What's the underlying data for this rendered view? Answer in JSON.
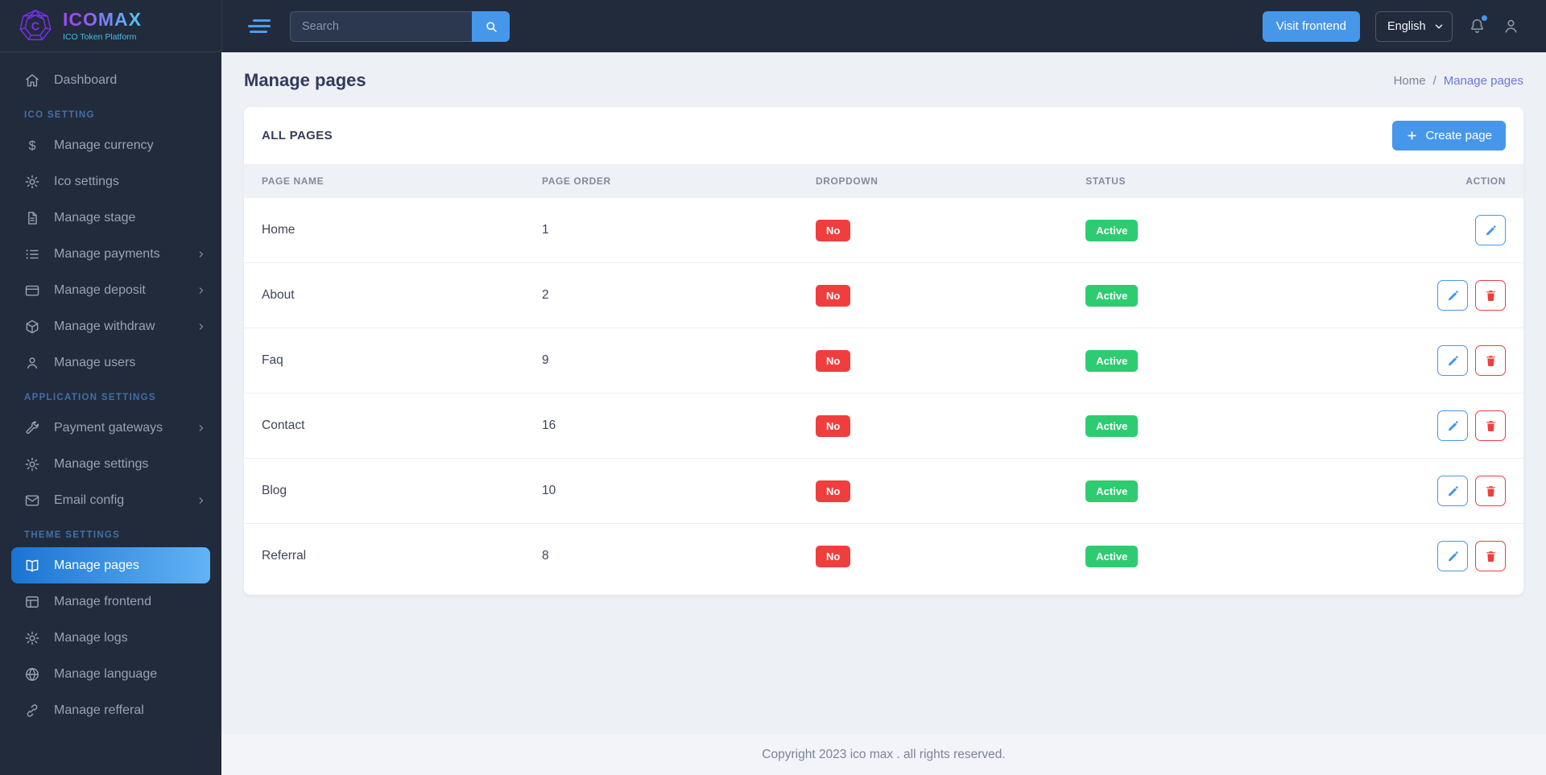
{
  "brand": {
    "name": "ICOMAX",
    "tagline": "ICO Token Platform",
    "logo_icon": "icomax-gem-icon"
  },
  "colors": {
    "sidebar_bg": "#222b3b",
    "topbar_bg": "#222b3b",
    "accent_blue": "#4697ea",
    "active_gradient_start": "#1b74d2",
    "active_gradient_end": "#62b3f5",
    "badge_red": "#f03e3e",
    "badge_green": "#2ecc71",
    "main_bg": "#edf0f5",
    "breadcrumb_link": "#6d76e4",
    "section_label": "#4070a8"
  },
  "sidebar": {
    "sections": [
      {
        "label": "",
        "items": [
          {
            "label": "Dashboard",
            "icon": "home",
            "chevron": false,
            "active": false
          }
        ]
      },
      {
        "label": "ICO SETTING",
        "items": [
          {
            "label": "Manage currency",
            "icon": "dollar",
            "chevron": false,
            "active": false
          },
          {
            "label": "Ico settings",
            "icon": "gear",
            "chevron": false,
            "active": false
          },
          {
            "label": "Manage stage",
            "icon": "file",
            "chevron": false,
            "active": false
          },
          {
            "label": "Manage payments",
            "icon": "list",
            "chevron": true,
            "active": false
          },
          {
            "label": "Manage deposit",
            "icon": "card",
            "chevron": true,
            "active": false
          },
          {
            "label": "Manage withdraw",
            "icon": "box",
            "chevron": true,
            "active": false
          },
          {
            "label": "Manage users",
            "icon": "user",
            "chevron": false,
            "active": false
          }
        ]
      },
      {
        "label": "APPLICATION SETTINGS",
        "items": [
          {
            "label": "Payment gateways",
            "icon": "wrench",
            "chevron": true,
            "active": false
          },
          {
            "label": "Manage settings",
            "icon": "gear",
            "chevron": false,
            "active": false
          },
          {
            "label": "Email config",
            "icon": "mail",
            "chevron": true,
            "active": false
          }
        ]
      },
      {
        "label": "THEME SETTINGS",
        "items": [
          {
            "label": "Manage pages",
            "icon": "book-open",
            "chevron": false,
            "active": true
          },
          {
            "label": "Manage frontend",
            "icon": "layout",
            "chevron": false,
            "active": false
          },
          {
            "label": "Manage logs",
            "icon": "gear",
            "chevron": false,
            "active": false
          },
          {
            "label": "Manage language",
            "icon": "globe",
            "chevron": false,
            "active": false
          },
          {
            "label": "Manage refferal",
            "icon": "link",
            "chevron": false,
            "active": false
          }
        ]
      }
    ]
  },
  "topbar": {
    "search_placeholder": "Search",
    "search_value": "",
    "visit_frontend_label": "Visit frontend",
    "language_selected": "English",
    "language_options": [
      "English"
    ],
    "notification_dot": true
  },
  "page": {
    "title": "Manage pages",
    "breadcrumb": [
      "Home",
      "Manage pages"
    ],
    "breadcrumb_separator": "/"
  },
  "card": {
    "title": "ALL PAGES",
    "create_button_label": "Create page"
  },
  "table": {
    "headers": [
      "PAGE NAME",
      "PAGE ORDER",
      "DROPDOWN",
      "STATUS",
      "ACTION"
    ],
    "rows": [
      {
        "name": "Home",
        "order": "1",
        "dropdown": "No",
        "status": "Active",
        "can_delete": false
      },
      {
        "name": "About",
        "order": "2",
        "dropdown": "No",
        "status": "Active",
        "can_delete": true
      },
      {
        "name": "Faq",
        "order": "9",
        "dropdown": "No",
        "status": "Active",
        "can_delete": true
      },
      {
        "name": "Contact",
        "order": "16",
        "dropdown": "No",
        "status": "Active",
        "can_delete": true
      },
      {
        "name": "Blog",
        "order": "10",
        "dropdown": "No",
        "status": "Active",
        "can_delete": true
      },
      {
        "name": "Referral",
        "order": "8",
        "dropdown": "No",
        "status": "Active",
        "can_delete": true
      }
    ]
  },
  "footer": {
    "text": "Copyright 2023 ico max . all rights reserved."
  }
}
